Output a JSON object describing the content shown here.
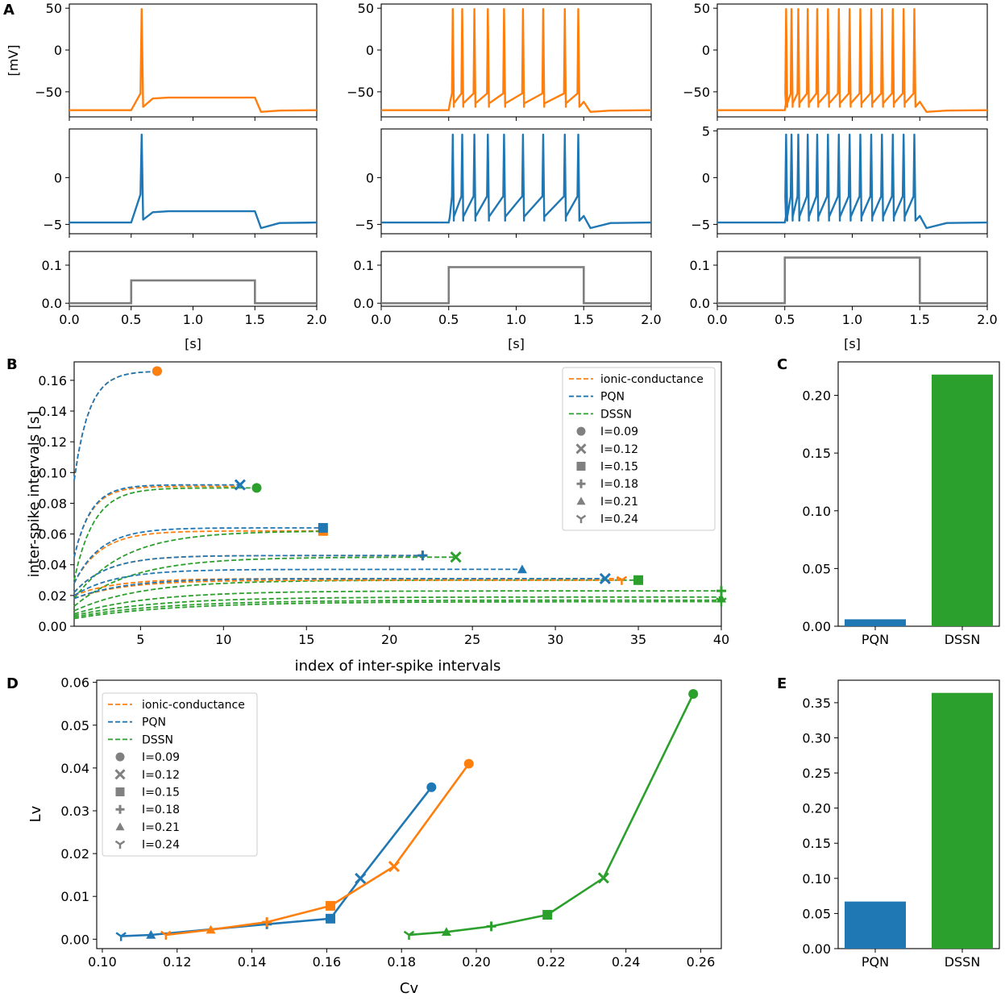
{
  "colors": {
    "ionic": "#ff7f0e",
    "pqn": "#1f77b4",
    "dssn": "#2ca02c",
    "stim": "#7f7f7f",
    "marker": "#808080"
  },
  "panel_letters": [
    "A",
    "B",
    "C",
    "D",
    "E"
  ],
  "chart_data": [
    {
      "id": "A",
      "type": "line",
      "title": "",
      "xlabel": "[s]",
      "ylabel_top": "[mV]",
      "columns": [
        {
          "current": 0.06,
          "spike_times_ionic": [
            0.585
          ],
          "spike_times_dssn": [
            0.585
          ],
          "top_ticks": [
            "50",
            "0",
            "−50"
          ],
          "mid_ticks": [
            "0",
            "−5"
          ]
        },
        {
          "current": 0.095,
          "spike_times_ionic": [
            0.53,
            0.6,
            0.69,
            0.79,
            0.91,
            1.05,
            1.2,
            1.36,
            1.46
          ],
          "spike_times_dssn": [
            0.53,
            0.6,
            0.69,
            0.79,
            0.91,
            1.05,
            1.2,
            1.36,
            1.46
          ],
          "top_ticks": [
            "50",
            "0",
            "−50"
          ],
          "mid_ticks": [
            "0",
            "−5"
          ]
        },
        {
          "current": 0.12,
          "spike_times_ionic": [
            0.51,
            0.55,
            0.6,
            0.67,
            0.74,
            0.82,
            0.9,
            0.98,
            1.06,
            1.14,
            1.22,
            1.3,
            1.38,
            1.46
          ],
          "spike_times_dssn": [
            0.51,
            0.55,
            0.6,
            0.67,
            0.74,
            0.82,
            0.9,
            0.98,
            1.06,
            1.14,
            1.22,
            1.3,
            1.38,
            1.46
          ],
          "top_ticks": [
            "50",
            "0",
            "−50"
          ],
          "mid_ticks": [
            "5",
            "0",
            "−5"
          ]
        }
      ],
      "stim_ticks": [
        "0.1",
        "0.0"
      ],
      "x_ticks": [
        "0.0",
        "0.5",
        "1.0",
        "1.5",
        "2.0"
      ],
      "xlim": [
        0,
        2.0
      ]
    },
    {
      "id": "B",
      "type": "line",
      "xlabel": "index of inter-spike intervals",
      "ylabel": "inter-spike intervals [s]",
      "xlim": [
        1,
        40
      ],
      "ylim": [
        0,
        0.172
      ],
      "x_ticks": [
        5,
        10,
        15,
        20,
        25,
        30,
        35,
        40
      ],
      "y_ticks": [
        "0.00",
        "0.02",
        "0.04",
        "0.06",
        "0.08",
        "0.10",
        "0.12",
        "0.14",
        "0.16"
      ],
      "legend": [
        "ionic-conductance",
        "PQN",
        "DSSN",
        "I=0.09",
        "I=0.12",
        "I=0.15",
        "I=0.18",
        "I=0.21",
        "I=0.24"
      ],
      "series": [
        {
          "model": "ionic",
          "I": 0.09,
          "start": 0.095,
          "plateau": 0.166,
          "tau": 0.9,
          "end": 6
        },
        {
          "model": "pqn",
          "I": 0.09,
          "start": 0.095,
          "plateau": 0.166,
          "tau": 0.9,
          "end": 6
        },
        {
          "model": "ionic",
          "I": 0.12,
          "start": 0.045,
          "plateau": 0.091,
          "tau": 1.0,
          "end": 11
        },
        {
          "model": "pqn",
          "I": 0.12,
          "start": 0.045,
          "plateau": 0.092,
          "tau": 1.0,
          "end": 11
        },
        {
          "model": "dssn",
          "I": 0.12,
          "start": 0.03,
          "plateau": 0.09,
          "tau": 1.2,
          "end": 12
        },
        {
          "model": "ionic",
          "I": 0.15,
          "start": 0.028,
          "plateau": 0.062,
          "tau": 1.6,
          "end": 16
        },
        {
          "model": "pqn",
          "I": 0.15,
          "start": 0.028,
          "plateau": 0.064,
          "tau": 1.6,
          "end": 16
        },
        {
          "model": "dssn",
          "I": 0.15,
          "start": 0.018,
          "plateau": 0.062,
          "tau": 3.0,
          "end": 16
        },
        {
          "model": "ionic",
          "I": 0.18,
          "start": 0.022,
          "plateau": 0.046,
          "tau": 2.0,
          "end": 22
        },
        {
          "model": "pqn",
          "I": 0.18,
          "start": 0.022,
          "plateau": 0.046,
          "tau": 2.0,
          "end": 22
        },
        {
          "model": "dssn",
          "I": 0.18,
          "start": 0.013,
          "plateau": 0.045,
          "tau": 3.5,
          "end": 24
        },
        {
          "model": "ionic",
          "I": 0.21,
          "start": 0.02,
          "plateau": 0.031,
          "tau": 2.5,
          "end": 34
        },
        {
          "model": "pqn",
          "I": 0.21,
          "start": 0.02,
          "plateau": 0.037,
          "tau": 2.5,
          "end": 28
        },
        {
          "model": "dssn",
          "I": 0.21,
          "start": 0.01,
          "plateau": 0.03,
          "tau": 4.0,
          "end": 35
        },
        {
          "model": "ionic",
          "I": 0.24,
          "start": 0.018,
          "plateau": 0.03,
          "tau": 3.0,
          "end": 34
        },
        {
          "model": "pqn",
          "I": 0.24,
          "start": 0.018,
          "plateau": 0.031,
          "tau": 3.0,
          "end": 33
        },
        {
          "model": "dssn",
          "I": 0.24,
          "start": 0.008,
          "plateau": 0.023,
          "tau": 4.5,
          "end": 40
        },
        {
          "model": "dssn",
          "I": 0.27,
          "start": 0.007,
          "plateau": 0.019,
          "tau": 5.0,
          "end": 40
        },
        {
          "model": "dssn",
          "I": 0.3,
          "start": 0.006,
          "plateau": 0.017,
          "tau": 5.5,
          "end": 40
        },
        {
          "model": "dssn",
          "I": 0.33,
          "start": 0.005,
          "plateau": 0.016,
          "tau": 6.0,
          "end": 40
        }
      ],
      "markers": [
        {
          "model": "pqn",
          "shape": "circle",
          "x": 6,
          "y": 0.166
        },
        {
          "model": "ionic",
          "shape": "circle",
          "x": 6,
          "y": 0.166
        },
        {
          "model": "pqn",
          "shape": "x",
          "x": 11,
          "y": 0.092
        },
        {
          "model": "dssn",
          "shape": "circle",
          "x": 12,
          "y": 0.09
        },
        {
          "model": "ionic",
          "shape": "square",
          "x": 16,
          "y": 0.062
        },
        {
          "model": "pqn",
          "shape": "square",
          "x": 16,
          "y": 0.064
        },
        {
          "model": "ionic",
          "shape": "plus",
          "x": 22,
          "y": 0.046
        },
        {
          "model": "pqn",
          "shape": "plus",
          "x": 22,
          "y": 0.046
        },
        {
          "model": "dssn",
          "shape": "x",
          "x": 24,
          "y": 0.045
        },
        {
          "model": "pqn",
          "shape": "triangle",
          "x": 28,
          "y": 0.037
        },
        {
          "model": "pqn",
          "shape": "x",
          "x": 33,
          "y": 0.031
        },
        {
          "model": "ionic",
          "shape": "tri_down",
          "x": 34,
          "y": 0.03
        },
        {
          "model": "dssn",
          "shape": "square",
          "x": 35,
          "y": 0.03
        },
        {
          "model": "dssn",
          "shape": "plus",
          "x": 40,
          "y": 0.023
        },
        {
          "model": "dssn",
          "shape": "triangle",
          "x": 40,
          "y": 0.018
        },
        {
          "model": "dssn",
          "shape": "tri_down",
          "x": 40,
          "y": 0.016
        }
      ]
    },
    {
      "id": "C",
      "type": "bar",
      "categories": [
        "PQN",
        "DSSN"
      ],
      "values": [
        0.006,
        0.218
      ],
      "ylim": [
        0,
        0.229
      ],
      "y_ticks": [
        "0.00",
        "0.05",
        "0.10",
        "0.15",
        "0.20"
      ]
    },
    {
      "id": "D",
      "type": "line",
      "xlabel": "Cv",
      "ylabel": "Lv",
      "xlim": [
        0.0985,
        0.2655
      ],
      "ylim": [
        -0.0022,
        0.0605
      ],
      "x_ticks": [
        "0.10",
        "0.12",
        "0.14",
        "0.16",
        "0.18",
        "0.20",
        "0.22",
        "0.24",
        "0.26"
      ],
      "y_ticks": [
        "0.00",
        "0.01",
        "0.02",
        "0.03",
        "0.04",
        "0.05",
        "0.06"
      ],
      "legend": [
        "ionic-conductance",
        "PQN",
        "DSSN",
        "I=0.09",
        "I=0.12",
        "I=0.15",
        "I=0.18",
        "I=0.21",
        "I=0.24"
      ],
      "series": [
        {
          "name": "PQN",
          "model": "pqn",
          "x": [
            0.105,
            0.113,
            0.144,
            0.161,
            0.169,
            0.188
          ],
          "y": [
            0.0007,
            0.001,
            0.0035,
            0.0048,
            0.0142,
            0.0355
          ],
          "markers": [
            "tri_down",
            "triangle",
            "plus",
            "square",
            "x",
            "circle"
          ]
        },
        {
          "name": "ionic-conductance",
          "model": "ionic",
          "x": [
            0.117,
            0.129,
            0.144,
            0.161,
            0.178,
            0.198
          ],
          "y": [
            0.001,
            0.0022,
            0.004,
            0.0078,
            0.017,
            0.041
          ],
          "markers": [
            "tri_down",
            "triangle",
            "plus",
            "square",
            "x",
            "circle"
          ]
        },
        {
          "name": "DSSN",
          "model": "dssn",
          "x": [
            0.182,
            0.192,
            0.204,
            0.219,
            0.234,
            0.258
          ],
          "y": [
            0.001,
            0.0017,
            0.003,
            0.0057,
            0.0143,
            0.0573
          ],
          "markers": [
            "tri_down",
            "triangle",
            "plus",
            "square",
            "x",
            "circle"
          ]
        }
      ]
    },
    {
      "id": "E",
      "type": "bar",
      "categories": [
        "PQN",
        "DSSN"
      ],
      "values": [
        0.067,
        0.364
      ],
      "ylim": [
        0,
        0.382
      ],
      "y_ticks": [
        "0.00",
        "0.05",
        "0.10",
        "0.15",
        "0.20",
        "0.25",
        "0.30",
        "0.35"
      ]
    }
  ]
}
